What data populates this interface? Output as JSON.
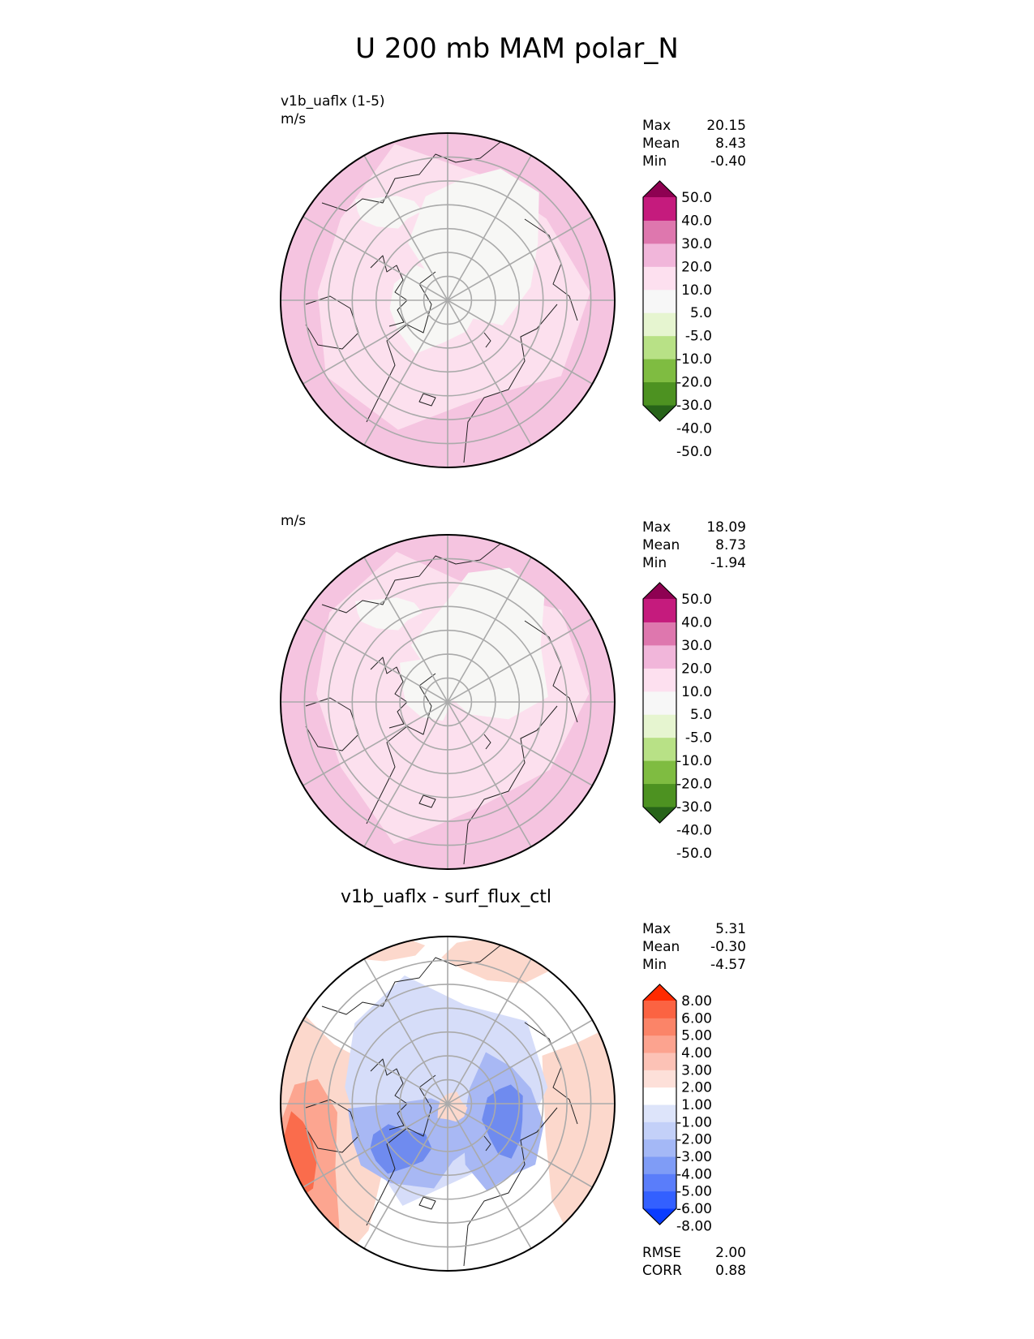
{
  "figure_title": "U 200 mb MAM polar_N",
  "panels": [
    {
      "line1": "v1b_uaflx (1-5)",
      "line2": "m/s",
      "center_title": "",
      "stats": [
        {
          "label": "Max",
          "value": "20.15"
        },
        {
          "label": "Mean",
          "value": "8.43"
        },
        {
          "label": "Min",
          "value": "-0.40"
        }
      ],
      "colorbar": {
        "colors": [
          "#276419",
          "#4d9221",
          "#7fbc41",
          "#b8e186",
          "#e6f5d0",
          "#f7f7f7",
          "#fde0ef",
          "#f1b6da",
          "#de77ae",
          "#c51b7d",
          "#8e0152"
        ],
        "ticks": [
          "50.0",
          "40.0",
          "30.0",
          "20.0",
          "10.0",
          "5.0",
          "-5.0",
          "-10.0",
          "-20.0",
          "-30.0",
          "-40.0",
          "-50.0"
        ]
      },
      "map_colors": {
        "base": "#f5c4e0",
        "mid": "#fce0ee",
        "core": "#f7f7f5"
      },
      "footer": []
    },
    {
      "line1": "",
      "line2": "m/s",
      "center_title": "",
      "stats": [
        {
          "label": "Max",
          "value": "18.09"
        },
        {
          "label": "Mean",
          "value": "8.73"
        },
        {
          "label": "Min",
          "value": "-1.94"
        }
      ],
      "colorbar": {
        "colors": [
          "#276419",
          "#4d9221",
          "#7fbc41",
          "#b8e186",
          "#e6f5d0",
          "#f7f7f7",
          "#fde0ef",
          "#f1b6da",
          "#de77ae",
          "#c51b7d",
          "#8e0152"
        ],
        "ticks": [
          "50.0",
          "40.0",
          "30.0",
          "20.0",
          "10.0",
          "5.0",
          "-5.0",
          "-10.0",
          "-20.0",
          "-30.0",
          "-40.0",
          "-50.0"
        ]
      },
      "map_colors": {
        "base": "#f5c4e0",
        "mid": "#fce0ee",
        "core": "#f7f7f5"
      },
      "footer": []
    },
    {
      "line1": "",
      "line2": "",
      "center_title": "v1b_uaflx - surf_flux_ctl",
      "stats": [
        {
          "label": "Max",
          "value": "5.31"
        },
        {
          "label": "Mean",
          "value": "-0.30"
        },
        {
          "label": "Min",
          "value": "-4.57"
        }
      ],
      "colorbar": {
        "colors": [
          "#0a3cff",
          "#3360ff",
          "#5a7dfa",
          "#7f9cf6",
          "#a4b8f6",
          "#c3d0f8",
          "#dde4fa",
          "#ffffff",
          "#fde0d9",
          "#fcc2b6",
          "#fca38f",
          "#fb8468",
          "#fb6342",
          "#ff2a00"
        ],
        "ticks": [
          "8.00",
          "6.00",
          "5.00",
          "4.00",
          "3.00",
          "2.00",
          "1.00",
          "-1.00",
          "-2.00",
          "-3.00",
          "-4.00",
          "-5.00",
          "-6.00",
          "-8.00"
        ]
      },
      "map_colors": {
        "base": "#ffffff",
        "red1": "#fcd8cc",
        "red2": "#fca590",
        "red3": "#fa6c4c",
        "blue1": "#d6ddf9",
        "blue2": "#a8b8f4",
        "blue3": "#6f8bef"
      },
      "footer": [
        {
          "label": "RMSE",
          "value": "2.00"
        },
        {
          "label": "CORR",
          "value": "0.88"
        }
      ]
    }
  ]
}
